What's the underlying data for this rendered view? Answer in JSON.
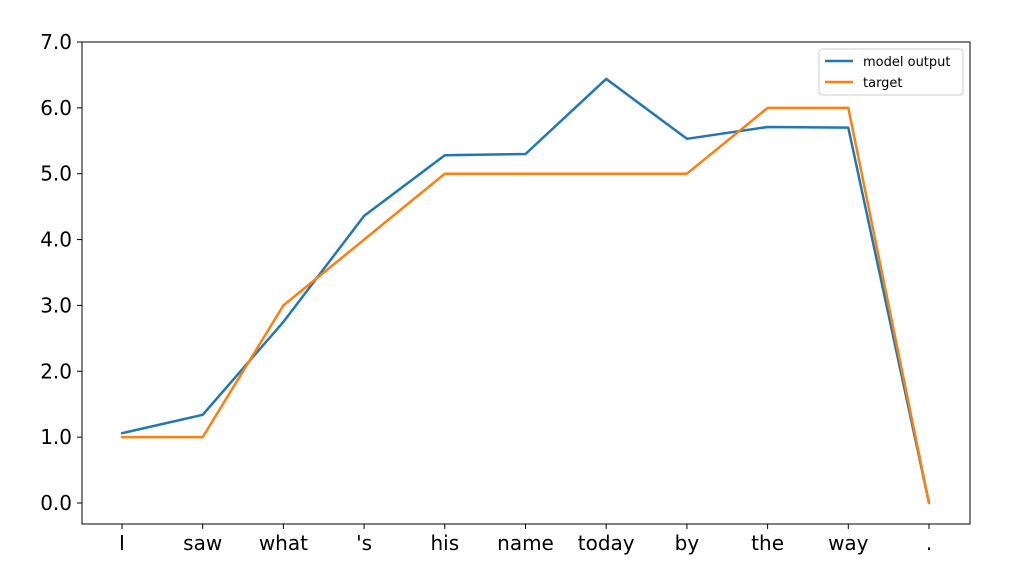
{
  "chart_data": {
    "type": "line",
    "title": "",
    "xlabel": "",
    "ylabel": "",
    "categories": [
      "I",
      "saw",
      "what",
      "'s",
      "his",
      "name",
      "today",
      "by",
      "the",
      "way",
      "."
    ],
    "series": [
      {
        "name": "model output",
        "color": "#1f77b4",
        "values": [
          1.06,
          1.34,
          2.75,
          4.36,
          5.28,
          5.3,
          6.44,
          5.53,
          5.71,
          5.7,
          0.0
        ]
      },
      {
        "name": "target",
        "color": "#ff7f0e",
        "values": [
          1.0,
          1.0,
          3.0,
          4.0,
          5.0,
          5.0,
          5.0,
          5.0,
          6.0,
          6.0,
          0.0
        ]
      }
    ],
    "ylim": [
      0.0,
      7.0
    ],
    "yticks": [
      "0.0",
      "1.0",
      "2.0",
      "3.0",
      "4.0",
      "5.0",
      "6.0",
      "7.0"
    ],
    "grid": false,
    "legend_position": "top-right"
  }
}
